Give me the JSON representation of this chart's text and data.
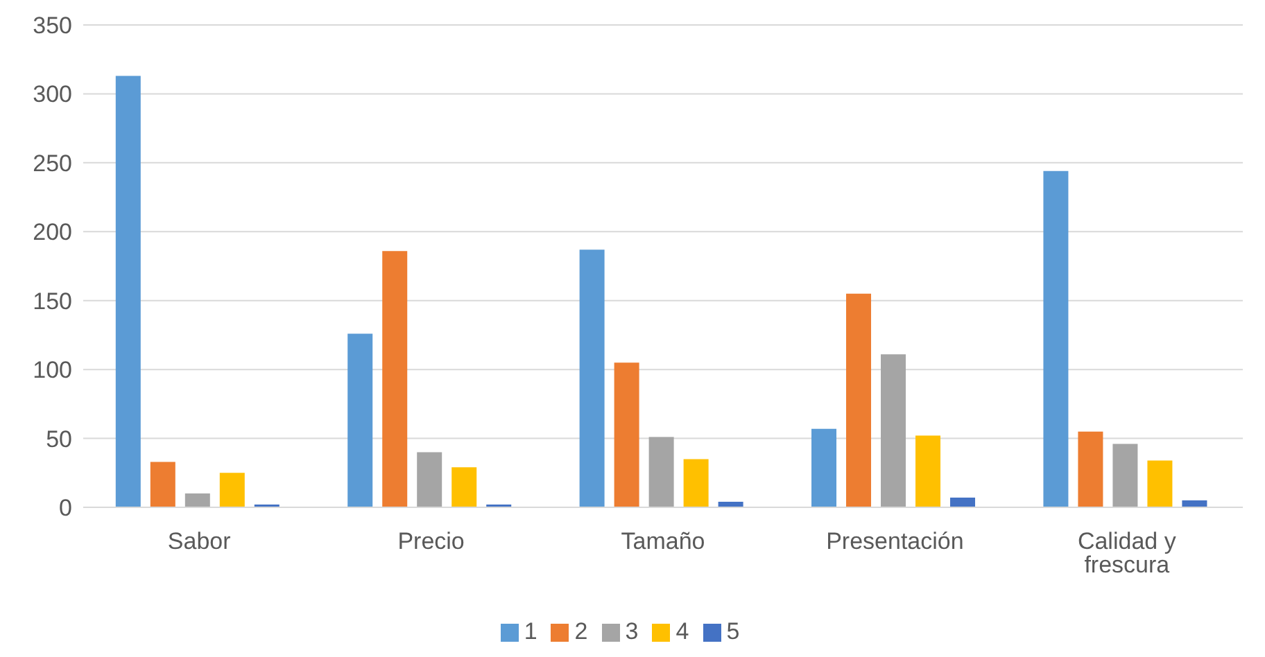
{
  "chart_data": {
    "type": "bar",
    "categories": [
      "Sabor",
      "Precio",
      "Tamaño",
      "Presentación",
      "Calidad y frescura"
    ],
    "series": [
      {
        "name": "1",
        "color": "#5b9bd5",
        "values": [
          313,
          126,
          187,
          57,
          244
        ]
      },
      {
        "name": "2",
        "color": "#ed7d31",
        "values": [
          33,
          186,
          105,
          155,
          55
        ]
      },
      {
        "name": "3",
        "color": "#a5a5a5",
        "values": [
          10,
          40,
          51,
          111,
          46
        ]
      },
      {
        "name": "4",
        "color": "#ffc000",
        "values": [
          25,
          29,
          35,
          52,
          34
        ]
      },
      {
        "name": "5",
        "color": "#4472c4",
        "values": [
          2,
          2,
          4,
          7,
          5
        ]
      }
    ],
    "ylim": [
      0,
      350
    ],
    "yticks": [
      0,
      50,
      100,
      150,
      200,
      250,
      300,
      350
    ],
    "grid": "y",
    "legend": "bottom"
  }
}
